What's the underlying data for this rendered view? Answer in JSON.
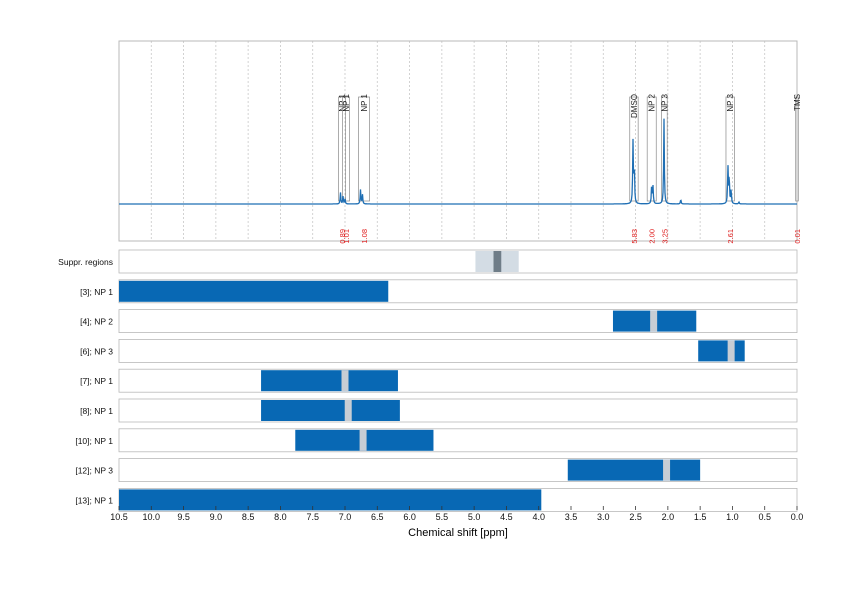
{
  "chart_data": {
    "type": "line",
    "xlabel": "Chemical shift [ppm]",
    "xlim": [
      10.5,
      0.0
    ],
    "x_reversed": true,
    "x_ticks": [
      10.5,
      10.0,
      9.5,
      9.0,
      8.5,
      8.0,
      7.5,
      7.0,
      6.5,
      6.0,
      5.5,
      5.0,
      4.5,
      4.0,
      3.5,
      3.0,
      2.5,
      2.0,
      1.5,
      1.0,
      0.5,
      0.0
    ],
    "x_tick_labels": [
      "10.5",
      "10.0",
      "9.5",
      "9.0",
      "8.5",
      "8.0",
      "7.5",
      "7.0",
      "6.5",
      "6.0",
      "5.5",
      "5.0",
      "4.5",
      "4.0",
      "3.5",
      "3.0",
      "2.5",
      "2.0",
      "1.5",
      "1.0",
      "0.5",
      "0.0"
    ],
    "grid": "vertical dotted",
    "spectrum_peaks": [
      {
        "ppm": 7.07,
        "height": 0.12
      },
      {
        "ppm": 7.03,
        "height": 0.08
      },
      {
        "ppm": 7.0,
        "height": 0.05
      },
      {
        "ppm": 6.76,
        "height": 0.15
      },
      {
        "ppm": 6.73,
        "height": 0.1
      },
      {
        "ppm": 2.54,
        "height": 0.65
      },
      {
        "ppm": 2.52,
        "height": 0.42
      },
      {
        "ppm": 2.25,
        "height": 0.22
      },
      {
        "ppm": 2.23,
        "height": 0.18
      },
      {
        "ppm": 2.06,
        "height": 0.9
      },
      {
        "ppm": 1.8,
        "height": 0.05
      },
      {
        "ppm": 1.07,
        "height": 0.4
      },
      {
        "ppm": 1.05,
        "height": 0.3
      },
      {
        "ppm": 1.02,
        "height": 0.15
      },
      {
        "ppm": 0.9,
        "height": 0.02
      }
    ],
    "peak_annotations": [
      {
        "label": "NP 1",
        "from": 7.1,
        "to": 6.99,
        "integral": "0.89"
      },
      {
        "label": "NP 1",
        "from": 7.04,
        "to": 6.93,
        "integral": "1.01"
      },
      {
        "label": "NP 1",
        "from": 6.79,
        "to": 6.62,
        "integral": "1.08"
      },
      {
        "label": "DMSO",
        "from": 2.59,
        "to": 2.46,
        "integral": "5.83"
      },
      {
        "label": "NP 2",
        "from": 2.32,
        "to": 2.18,
        "integral": "2.00"
      },
      {
        "label": "NP 3",
        "from": 2.1,
        "to": 2.01,
        "integral": "3.25"
      },
      {
        "label": "NP 3",
        "from": 1.1,
        "to": 0.97,
        "integral": "2.61"
      },
      {
        "label": "TMS",
        "from": 0.02,
        "to": -0.02,
        "integral": "0.01"
      }
    ],
    "range_rows": [
      {
        "label": "Suppr. regions",
        "ranges": [],
        "outer": [
          4.98,
          4.31
        ],
        "markers": [
          4.7,
          4.6
        ],
        "dark": [
          4.7,
          4.58
        ]
      },
      {
        "label": "[3]; NP 1",
        "ranges": [
          [
            10.5,
            6.33
          ]
        ],
        "markers": []
      },
      {
        "label": "[4]; NP 2",
        "ranges": [
          [
            2.85,
            1.56
          ]
        ],
        "markers": [
          2.22
        ]
      },
      {
        "label": "[6]; NP 3",
        "ranges": [
          [
            1.53,
            0.81
          ]
        ],
        "markers": [
          1.02
        ]
      },
      {
        "label": "[7]; NP 1",
        "ranges": [
          [
            8.3,
            6.18
          ]
        ],
        "markers": [
          7.0
        ]
      },
      {
        "label": "[8]; NP 1",
        "ranges": [
          [
            8.3,
            6.15
          ]
        ],
        "markers": [
          6.95
        ]
      },
      {
        "label": "[10]; NP 1",
        "ranges": [
          [
            7.77,
            5.63
          ]
        ],
        "markers": [
          6.72
        ]
      },
      {
        "label": "[12]; NP 3",
        "ranges": [
          [
            3.55,
            1.5
          ]
        ],
        "markers": [
          2.02
        ]
      },
      {
        "label": "[13]; NP 1",
        "ranges": [
          [
            10.5,
            3.96
          ]
        ],
        "markers": []
      }
    ],
    "colors": {
      "spectrum": "#1f6fb4",
      "bar": "#0868b4",
      "marker": "#c7cdd4",
      "suppr_outer": "#d3dce4",
      "suppr_mid": "#b0bac4",
      "suppr_dark": "#6f7d88",
      "integral_text": "#e02020",
      "frame": "#b9b9b9",
      "grid": "#c8c8c8"
    }
  }
}
